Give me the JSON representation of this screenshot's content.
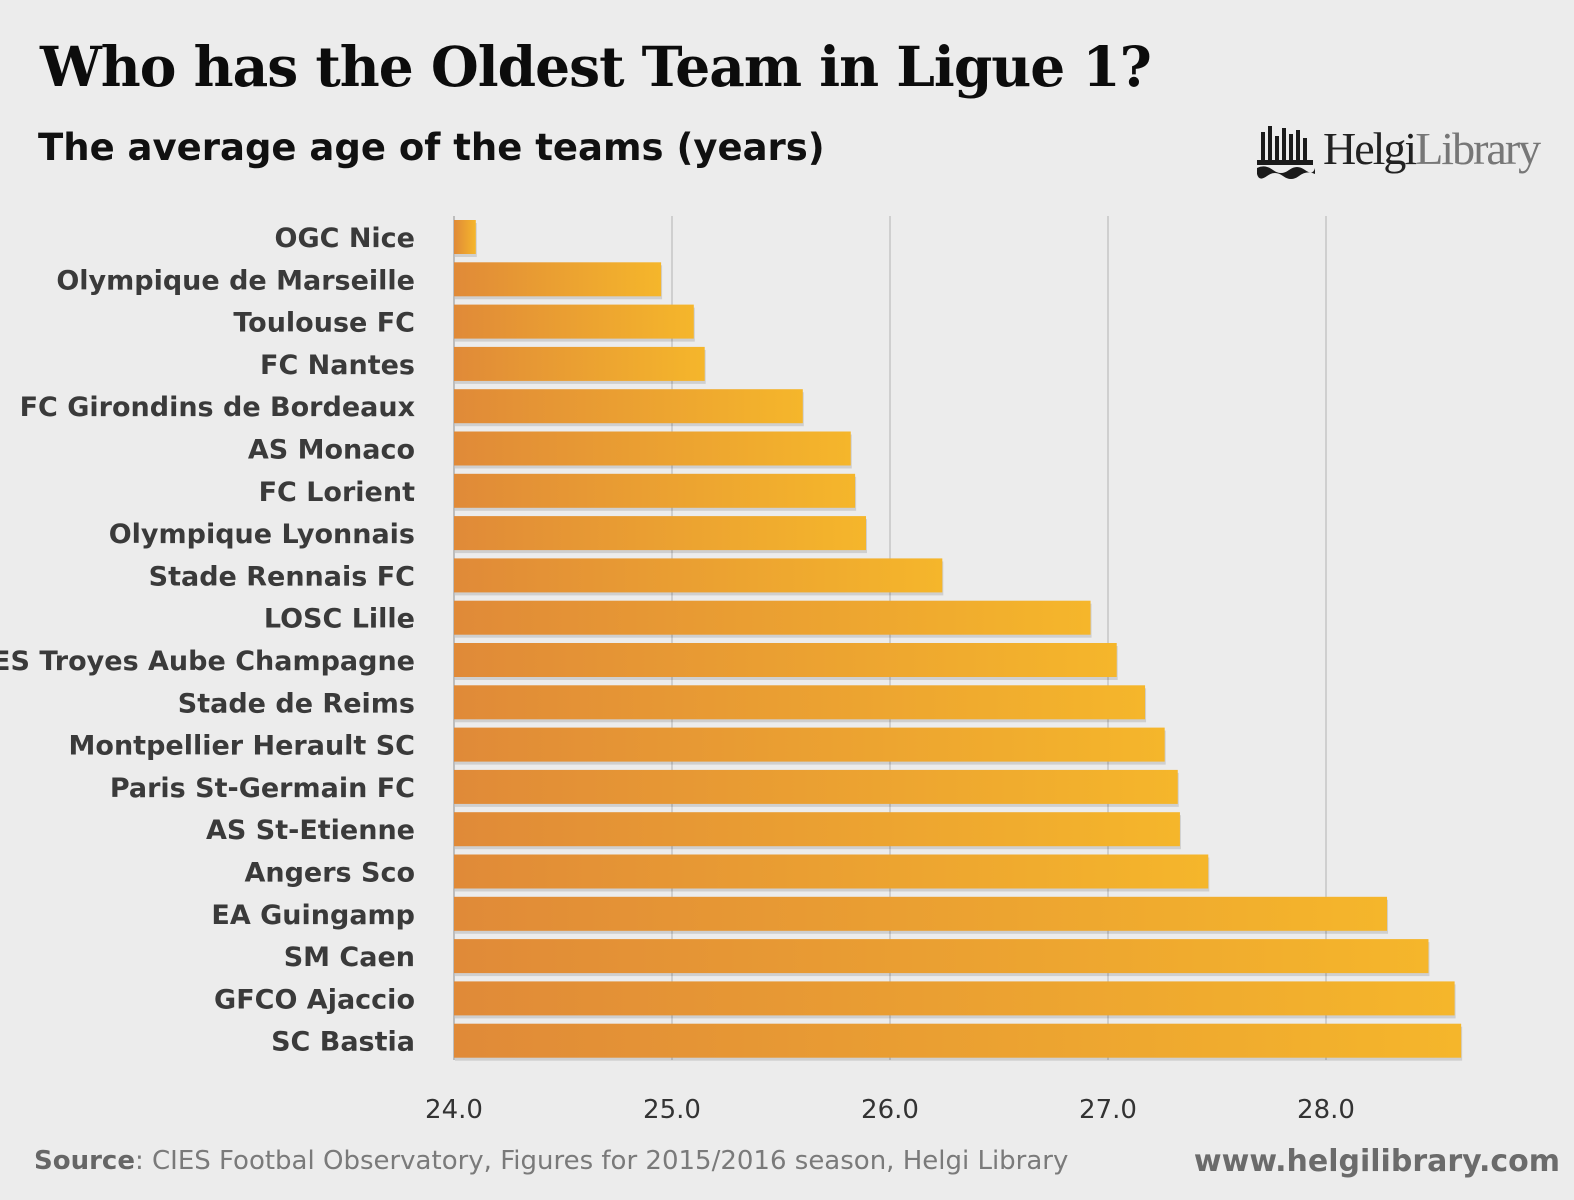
{
  "header": {
    "title": "Who has the Oldest Team in Ligue 1?",
    "subtitle": "The average age of the teams (years)"
  },
  "logo": {
    "name_dark": "Helgi",
    "name_light": "Library",
    "icon": "helgi-library-building-icon"
  },
  "footer": {
    "source_label": "Source",
    "source_text": ": CIES Footbal Observatory, Figures for 2015/2016 season, Helgi Library",
    "url": "www.helgilibrary.com"
  },
  "colors": {
    "background": "#ececec",
    "bar_start": "#e08a38",
    "bar_end": "#f5b62b",
    "grid": "#cfcfcf"
  },
  "chart_data": {
    "type": "bar",
    "orientation": "horizontal",
    "title": "Who has the Oldest Team in Ligue 1?",
    "subtitle": "The average age of the teams (years)",
    "categories": [
      "OGC Nice",
      "Olympique de Marseille",
      "Toulouse FC",
      "FC Nantes",
      "FC Girondins de Bordeaux",
      "AS Monaco",
      "FC Lorient",
      "Olympique Lyonnais",
      "Stade Rennais FC",
      "LOSC Lille",
      "ES Troyes Aube Champagne",
      "Stade de Reims",
      "Montpellier Herault SC",
      "Paris St-Germain FC",
      "AS St-Etienne",
      "Angers Sco",
      "EA Guingamp",
      "SM Caen",
      "GFCO Ajaccio",
      "SC Bastia"
    ],
    "values": [
      24.1,
      24.95,
      25.1,
      25.15,
      25.6,
      25.82,
      25.84,
      25.89,
      26.24,
      26.92,
      27.04,
      27.17,
      27.26,
      27.32,
      27.33,
      27.46,
      28.28,
      28.47,
      28.59,
      28.62
    ],
    "xlim": [
      24.0,
      28.7
    ],
    "xticks": [
      "24.0",
      "25.0",
      "26.0",
      "27.0",
      "28.0"
    ],
    "xtick_values": [
      24.0,
      25.0,
      26.0,
      27.0,
      28.0
    ],
    "grid": true,
    "legend": "none",
    "xlabel": "",
    "ylabel": ""
  }
}
